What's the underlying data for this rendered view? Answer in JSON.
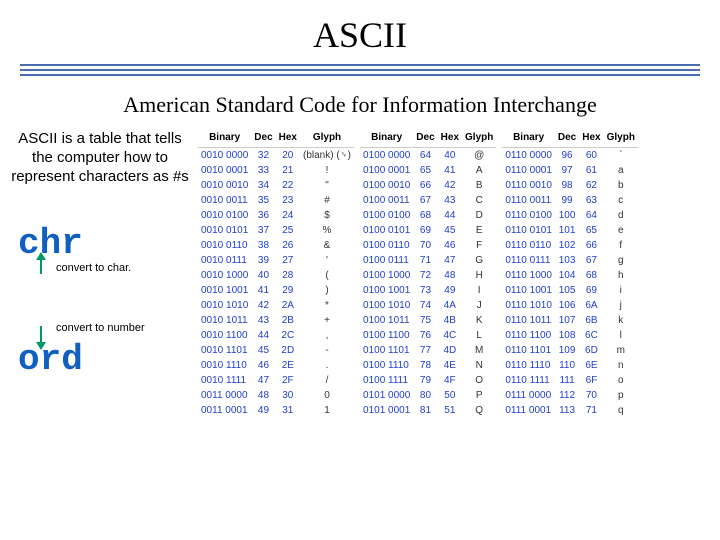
{
  "title": "ASCII",
  "subtitle": "American Standard Code for Information Interchange",
  "description": "ASCII is a table that tells the computer how to represent characters as #s",
  "chr_label": "chr",
  "chr_caption": "convert to char.",
  "ord_label": "ord",
  "ord_caption": "convert to number",
  "rule_color": "#4a6db0",
  "arrow_color": "#009966",
  "func_color": "#1060c0",
  "table_text_color": "#2040cc",
  "headers": [
    "Binary",
    "Dec",
    "Hex",
    "Glyph"
  ],
  "table1": [
    [
      "0010 0000",
      "32",
      "20",
      "(blank) (␠)"
    ],
    [
      "0010 0001",
      "33",
      "21",
      "!"
    ],
    [
      "0010 0010",
      "34",
      "22",
      "\""
    ],
    [
      "0010 0011",
      "35",
      "23",
      "#"
    ],
    [
      "0010 0100",
      "36",
      "24",
      "$"
    ],
    [
      "0010 0101",
      "37",
      "25",
      "%"
    ],
    [
      "0010 0110",
      "38",
      "26",
      "&"
    ],
    [
      "0010 0111",
      "39",
      "27",
      "'"
    ],
    [
      "0010 1000",
      "40",
      "28",
      "("
    ],
    [
      "0010 1001",
      "41",
      "29",
      ")"
    ],
    [
      "0010 1010",
      "42",
      "2A",
      "*"
    ],
    [
      "0010 1011",
      "43",
      "2B",
      "+"
    ],
    [
      "0010 1100",
      "44",
      "2C",
      ","
    ],
    [
      "0010 1101",
      "45",
      "2D",
      "-"
    ],
    [
      "0010 1110",
      "46",
      "2E",
      "."
    ],
    [
      "0010 1111",
      "47",
      "2F",
      "/"
    ],
    [
      "0011 0000",
      "48",
      "30",
      "0"
    ],
    [
      "0011 0001",
      "49",
      "31",
      "1"
    ]
  ],
  "table2": [
    [
      "0100 0000",
      "64",
      "40",
      "@"
    ],
    [
      "0100 0001",
      "65",
      "41",
      "A"
    ],
    [
      "0100 0010",
      "66",
      "42",
      "B"
    ],
    [
      "0100 0011",
      "67",
      "43",
      "C"
    ],
    [
      "0100 0100",
      "68",
      "44",
      "D"
    ],
    [
      "0100 0101",
      "69",
      "45",
      "E"
    ],
    [
      "0100 0110",
      "70",
      "46",
      "F"
    ],
    [
      "0100 0111",
      "71",
      "47",
      "G"
    ],
    [
      "0100 1000",
      "72",
      "48",
      "H"
    ],
    [
      "0100 1001",
      "73",
      "49",
      "I"
    ],
    [
      "0100 1010",
      "74",
      "4A",
      "J"
    ],
    [
      "0100 1011",
      "75",
      "4B",
      "K"
    ],
    [
      "0100 1100",
      "76",
      "4C",
      "L"
    ],
    [
      "0100 1101",
      "77",
      "4D",
      "M"
    ],
    [
      "0100 1110",
      "78",
      "4E",
      "N"
    ],
    [
      "0100 1111",
      "79",
      "4F",
      "O"
    ],
    [
      "0101 0000",
      "80",
      "50",
      "P"
    ],
    [
      "0101 0001",
      "81",
      "51",
      "Q"
    ]
  ],
  "table3": [
    [
      "0110 0000",
      "96",
      "60",
      "`"
    ],
    [
      "0110 0001",
      "97",
      "61",
      "a"
    ],
    [
      "0110 0010",
      "98",
      "62",
      "b"
    ],
    [
      "0110 0011",
      "99",
      "63",
      "c"
    ],
    [
      "0110 0100",
      "100",
      "64",
      "d"
    ],
    [
      "0110 0101",
      "101",
      "65",
      "e"
    ],
    [
      "0110 0110",
      "102",
      "66",
      "f"
    ],
    [
      "0110 0111",
      "103",
      "67",
      "g"
    ],
    [
      "0110 1000",
      "104",
      "68",
      "h"
    ],
    [
      "0110 1001",
      "105",
      "69",
      "i"
    ],
    [
      "0110 1010",
      "106",
      "6A",
      "j"
    ],
    [
      "0110 1011",
      "107",
      "6B",
      "k"
    ],
    [
      "0110 1100",
      "108",
      "6C",
      "l"
    ],
    [
      "0110 1101",
      "109",
      "6D",
      "m"
    ],
    [
      "0110 1110",
      "110",
      "6E",
      "n"
    ],
    [
      "0110 1111",
      "111",
      "6F",
      "o"
    ],
    [
      "0111 0000",
      "112",
      "70",
      "p"
    ],
    [
      "0111 0001",
      "113",
      "71",
      "q"
    ]
  ]
}
